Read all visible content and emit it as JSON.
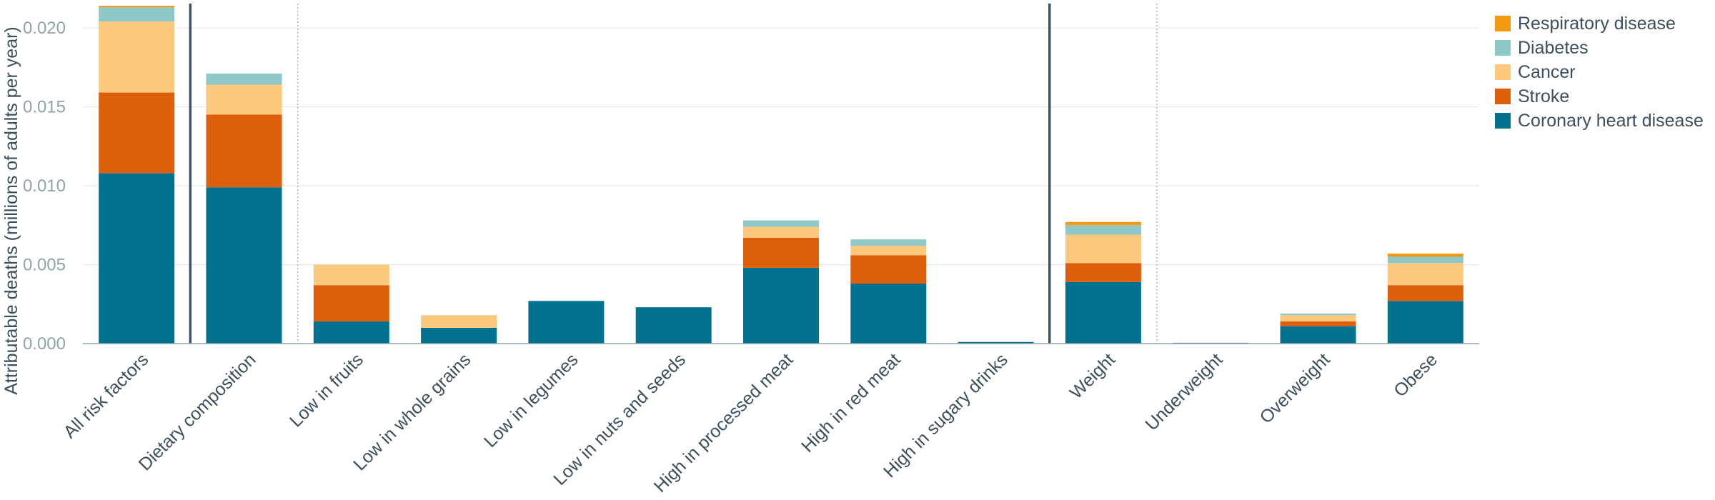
{
  "chart_data": {
    "type": "bar",
    "stacked": true,
    "title": "",
    "xlabel": "",
    "ylabel": "Attributable deaths (millions of adults per year)",
    "ylim": [
      0,
      0.0214
    ],
    "yticks": [
      "0.000",
      "0.005",
      "0.010",
      "0.015",
      "0.020"
    ],
    "ytick_values": [
      0,
      0.005,
      0.01,
      0.015,
      0.02
    ],
    "grid": true,
    "legend_position": "top-right",
    "categories": [
      "All risk factors",
      "Dietary composition",
      "Low in fruits",
      "Low in whole grains",
      "Low in legumes",
      "Low in nuts and seeds",
      "High in processed meat",
      "High in red meat",
      "High in sugary drinks",
      "Weight",
      "Underweight",
      "Overweight",
      "Obese"
    ],
    "separators": [
      {
        "after_index": 0,
        "style": "solid"
      },
      {
        "after_index": 1,
        "style": "dotted"
      },
      {
        "after_index": 8,
        "style": "solid"
      },
      {
        "after_index": 9,
        "style": "dotted"
      }
    ],
    "series": [
      {
        "name": "Coronary heart disease",
        "color": "#00728f",
        "values": [
          0.0108,
          0.0099,
          0.0014,
          0.001,
          0.0027,
          0.0023,
          0.0048,
          0.0038,
          0.0001,
          0.0039,
          5e-05,
          0.0011,
          0.0027
        ]
      },
      {
        "name": "Stroke",
        "color": "#dd5e0b",
        "values": [
          0.0051,
          0.0046,
          0.0023,
          0.0,
          0.0,
          0.0,
          0.0019,
          0.0018,
          0.0,
          0.0012,
          0.0,
          0.0003,
          0.001
        ]
      },
      {
        "name": "Cancer",
        "color": "#fcc87e",
        "values": [
          0.0045,
          0.0019,
          0.0013,
          0.0008,
          0.0,
          0.0,
          0.0007,
          0.0006,
          0.0,
          0.0018,
          0.0,
          0.0004,
          0.0014
        ]
      },
      {
        "name": "Diabetes",
        "color": "#8fc8c8",
        "values": [
          0.0009,
          0.0007,
          0.0,
          0.0,
          0.0,
          0.0,
          0.0004,
          0.0004,
          0.0,
          0.0006,
          0.0,
          0.0001,
          0.0004
        ]
      },
      {
        "name": "Respiratory disease",
        "color": "#f59a10",
        "values": [
          0.0001,
          0.0,
          0.0,
          0.0,
          0.0,
          0.0,
          0.0,
          0.0,
          0.0,
          0.0002,
          0.0,
          0.0,
          0.0002
        ]
      }
    ],
    "legend_order": [
      "Respiratory disease",
      "Diabetes",
      "Cancer",
      "Stroke",
      "Coronary heart disease"
    ]
  }
}
